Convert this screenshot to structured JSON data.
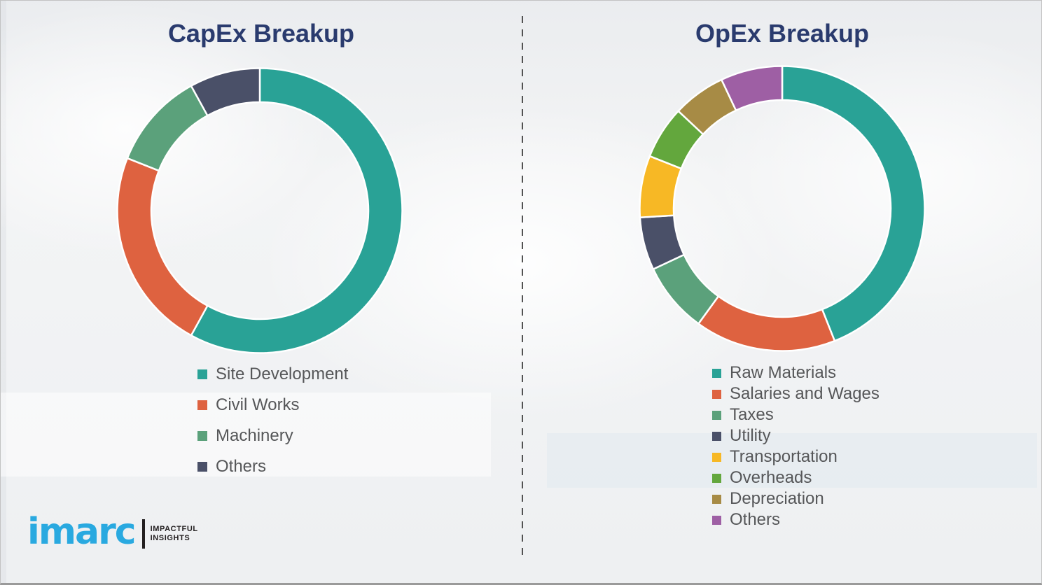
{
  "header": {
    "capex_title": "CapEx Breakup",
    "opex_title": "OpEx Breakup",
    "title_color": "#2A3B6E"
  },
  "chart_data": [
    {
      "type": "pie",
      "subtype": "donut",
      "title": "CapEx Breakup",
      "categories": [
        "Site Development",
        "Civil Works",
        "Machinery",
        "Others"
      ],
      "values": [
        58,
        23,
        11,
        8
      ],
      "unit": "percent_estimated_from_arc_angles",
      "colors": [
        "#29A296",
        "#DE6240",
        "#5BA17B",
        "#4A5068"
      ],
      "legend_position": "bottom",
      "start_angle_deg": 0,
      "direction": "clockwise",
      "data_labels": false
    },
    {
      "type": "pie",
      "subtype": "donut",
      "title": "OpEx Breakup",
      "categories": [
        "Raw Materials",
        "Salaries and Wages",
        "Taxes",
        "Utility",
        "Transportation",
        "Overheads",
        "Depreciation",
        "Others"
      ],
      "values": [
        44,
        16,
        8,
        6,
        7,
        6,
        6,
        7
      ],
      "unit": "percent_estimated_from_arc_angles",
      "colors": [
        "#29A296",
        "#DE6240",
        "#5BA17B",
        "#4A5068",
        "#F7B825",
        "#63A73D",
        "#A78B45",
        "#9E5FA4"
      ],
      "legend_position": "bottom",
      "start_angle_deg": 0,
      "direction": "clockwise",
      "data_labels": false
    }
  ],
  "logo": {
    "brand": "imarc",
    "tagline_line1": "IMPACTFUL",
    "tagline_line2": "INSIGHTS",
    "brand_color": "#29A9E0",
    "tagline_color": "#231F20"
  }
}
